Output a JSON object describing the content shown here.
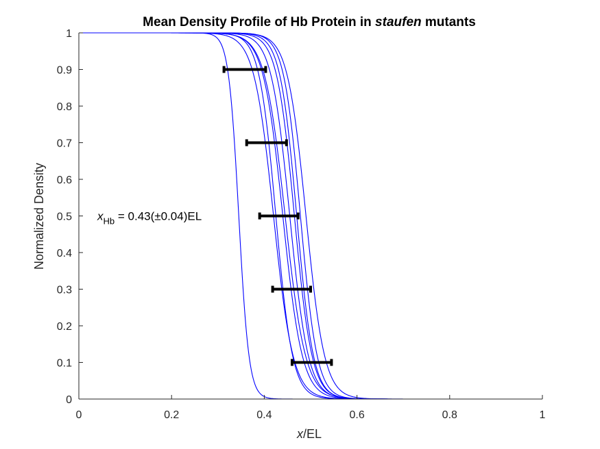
{
  "chart_data": {
    "type": "line",
    "title_parts": [
      "Mean Density Profile of Hb Protein in ",
      "staufen",
      " mutants"
    ],
    "xlabel_italic": "x",
    "xlabel_rest": "/EL",
    "ylabel": "Normalized Density",
    "xlim": [
      0,
      1
    ],
    "ylim": [
      0,
      1
    ],
    "x_ticks": [
      0,
      0.2,
      0.4,
      0.6,
      0.8,
      1
    ],
    "x_tick_labels": [
      "0",
      "0.2",
      "0.4",
      "0.6",
      "0.8",
      "1"
    ],
    "y_ticks": [
      0,
      0.1,
      0.2,
      0.3,
      0.4,
      0.5,
      0.6,
      0.7,
      0.8,
      0.9,
      1
    ],
    "y_tick_labels": [
      "0",
      "0.1",
      "0.2",
      "0.3",
      "0.4",
      "0.5",
      "0.6",
      "0.7",
      "0.8",
      "0.9",
      "1"
    ],
    "grid": false,
    "curve_color": "#0000ff",
    "errorbar_color": "#000000",
    "series_model": "sigmoid y = 1 / (1 + exp((x - x0) / w))",
    "series": [
      {
        "x0": 0.345,
        "w": 0.011
      },
      {
        "x0": 0.42,
        "w": 0.021
      },
      {
        "x0": 0.425,
        "w": 0.018
      },
      {
        "x0": 0.44,
        "w": 0.021
      },
      {
        "x0": 0.445,
        "w": 0.022
      },
      {
        "x0": 0.455,
        "w": 0.02
      },
      {
        "x0": 0.465,
        "w": 0.019
      },
      {
        "x0": 0.47,
        "w": 0.018
      },
      {
        "x0": 0.478,
        "w": 0.018
      },
      {
        "x0": 0.49,
        "w": 0.02
      }
    ],
    "error_bars": [
      {
        "y": 0.9,
        "xmin": 0.313,
        "xmax": 0.403
      },
      {
        "y": 0.7,
        "xmin": 0.362,
        "xmax": 0.448
      },
      {
        "y": 0.5,
        "xmin": 0.39,
        "xmax": 0.473
      },
      {
        "y": 0.3,
        "xmin": 0.418,
        "xmax": 0.5
      },
      {
        "y": 0.1,
        "xmin": 0.46,
        "xmax": 0.545
      }
    ],
    "annotation": {
      "var": "x",
      "sub": "Hb",
      "rest": " = 0.43(±0.04)EL",
      "x": 0.04,
      "y": 0.5
    }
  }
}
